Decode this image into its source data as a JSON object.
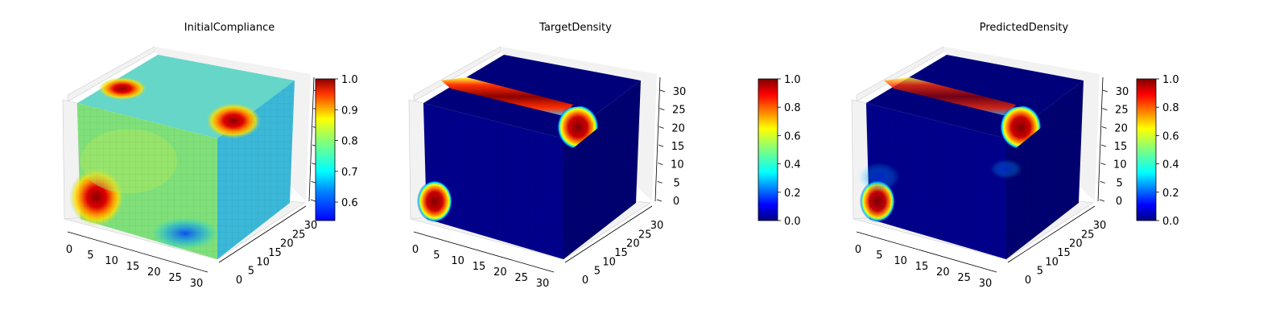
{
  "chart_data": [
    {
      "type": "heatmap",
      "title": "InitialCompliance",
      "dims": [
        32,
        32,
        32
      ],
      "x_ticks": [
        "0",
        "5",
        "10",
        "15",
        "20",
        "25",
        "30"
      ],
      "y_ticks": [
        "0",
        "5",
        "10",
        "15",
        "20",
        "25",
        "30"
      ],
      "z_ticks": [],
      "colorbar": {
        "ticks": [
          "0.6",
          "0.7",
          "0.8",
          "0.9",
          "1.0"
        ],
        "range": [
          0.54,
          1.0
        ],
        "colormap": "jet"
      },
      "description_values": {
        "background_level": 0.7,
        "hot_regions_level": 1.0
      }
    },
    {
      "type": "heatmap",
      "title": "TargetDensity",
      "dims": [
        32,
        32,
        32
      ],
      "x_ticks": [
        "0",
        "5",
        "10",
        "15",
        "20",
        "25",
        "30"
      ],
      "y_ticks": [
        "0",
        "5",
        "10",
        "15",
        "20",
        "25",
        "30"
      ],
      "z_ticks": [
        "0",
        "5",
        "10",
        "15",
        "20",
        "25",
        "30"
      ],
      "colorbar": {
        "ticks": [
          "0.0",
          "0.2",
          "0.4",
          "0.6",
          "0.8",
          "1.0"
        ],
        "range": [
          0.0,
          1.0
        ],
        "colormap": "jet"
      }
    },
    {
      "type": "heatmap",
      "title": "PredictedDensity",
      "dims": [
        32,
        32,
        32
      ],
      "x_ticks": [
        "0",
        "5",
        "10",
        "15",
        "20",
        "25",
        "30"
      ],
      "y_ticks": [
        "0",
        "5",
        "10",
        "15",
        "20",
        "25",
        "30"
      ],
      "z_ticks": [
        "0",
        "5",
        "10",
        "15",
        "20",
        "25",
        "30"
      ],
      "colorbar": {
        "ticks": [
          "0.0",
          "0.2",
          "0.4",
          "0.6",
          "0.8",
          "1.0"
        ],
        "range": [
          0.0,
          1.0
        ],
        "colormap": "jet"
      }
    }
  ],
  "colors": {
    "jet_stops": [
      "#00007f",
      "#0000ff",
      "#007fff",
      "#00ffff",
      "#7fff7f",
      "#ffff00",
      "#ff7f00",
      "#ff0000",
      "#7f0000"
    ],
    "pane": "#f2f2f2",
    "grid": "#d8d8d8",
    "dark_blue": "#00008b"
  }
}
